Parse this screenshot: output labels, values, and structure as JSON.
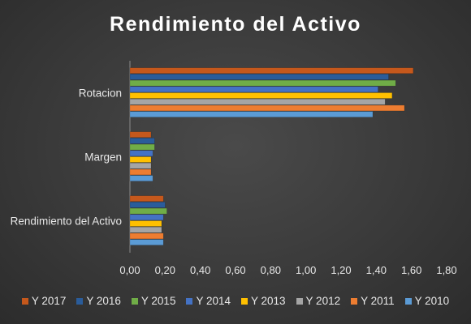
{
  "chart_data": {
    "type": "bar",
    "orientation": "horizontal",
    "title": "Rendimiento del Activo",
    "categories": [
      "Rotacion",
      "Margen",
      "Rendimiento del Activo"
    ],
    "series": [
      {
        "name": "Y 2017",
        "color": "#c5581c",
        "values": [
          1.61,
          0.12,
          0.19
        ]
      },
      {
        "name": "Y 2016",
        "color": "#2a5c9a",
        "values": [
          1.47,
          0.14,
          0.2
        ]
      },
      {
        "name": "Y 2015",
        "color": "#70ad47",
        "values": [
          1.51,
          0.14,
          0.21
        ]
      },
      {
        "name": "Y 2014",
        "color": "#4472c4",
        "values": [
          1.41,
          0.13,
          0.19
        ]
      },
      {
        "name": "Y 2013",
        "color": "#ffc000",
        "values": [
          1.49,
          0.12,
          0.18
        ]
      },
      {
        "name": "Y 2012",
        "color": "#a5a5a5",
        "values": [
          1.45,
          0.12,
          0.18
        ]
      },
      {
        "name": "Y 2011",
        "color": "#ed7d31",
        "values": [
          1.56,
          0.12,
          0.19
        ]
      },
      {
        "name": "Y 2010",
        "color": "#5b9bd5",
        "values": [
          1.38,
          0.13,
          0.19
        ]
      }
    ],
    "xlim": [
      0,
      1.8
    ],
    "xticks": [
      "0,00",
      "0,20",
      "0,40",
      "0,60",
      "0,80",
      "1,00",
      "1,20",
      "1,40",
      "1,60",
      "1,80"
    ],
    "grid": false,
    "legend": "bottom"
  }
}
